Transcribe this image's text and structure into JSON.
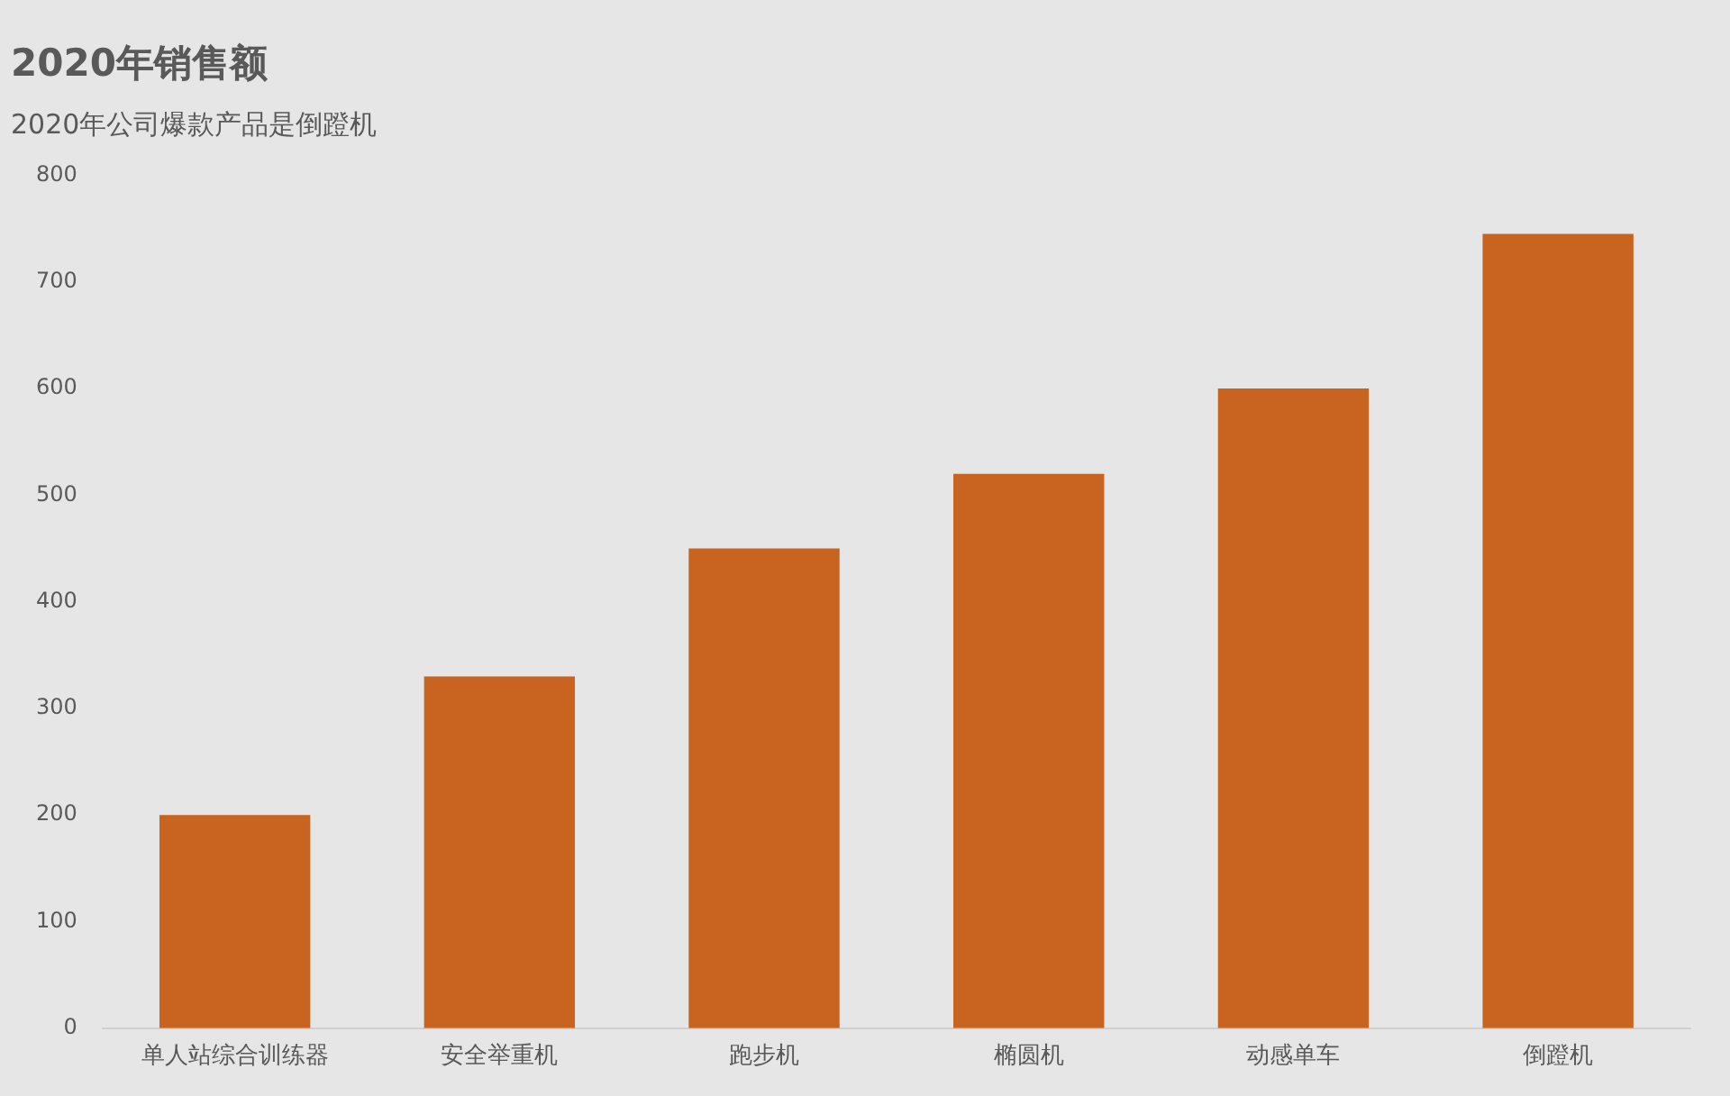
{
  "chart_data": {
    "type": "bar",
    "title": "2020年销售额",
    "subtitle": "2020年公司爆款产品是倒蹬机",
    "categories": [
      "单人站综合训练器",
      "安全举重机",
      "跑步机",
      "椭圆机",
      "动感单车",
      "倒蹬机"
    ],
    "values": [
      200,
      330,
      450,
      520,
      600,
      745
    ],
    "color": "#c8641f",
    "ylim": [
      0,
      800
    ],
    "yticks": [
      0,
      100,
      200,
      300,
      400,
      500,
      600,
      700,
      800
    ],
    "grid": false,
    "legend": false
  }
}
